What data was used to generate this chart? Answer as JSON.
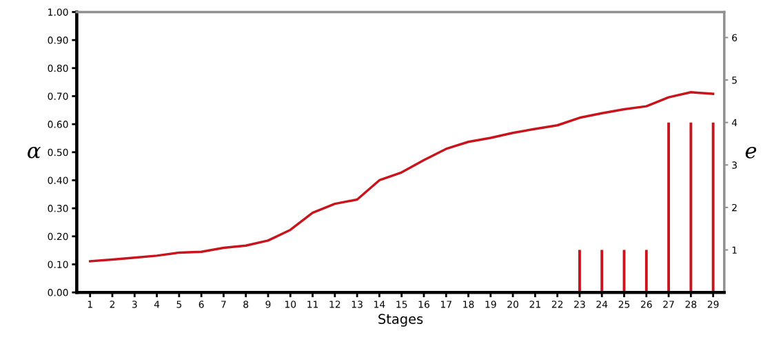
{
  "chart_data": {
    "type": "line",
    "xlabel": "Stages",
    "ylabel": "α",
    "y2label": "e",
    "categories": [
      "1",
      "2",
      "3",
      "4",
      "5",
      "6",
      "7",
      "8",
      "9",
      "10",
      "11",
      "12",
      "13",
      "14",
      "15",
      "16",
      "17",
      "18",
      "19",
      "20",
      "21",
      "22",
      "23",
      "24",
      "25",
      "26",
      "27",
      "28",
      "29"
    ],
    "series": [
      {
        "color": "#c8141c",
        "values": [
          0.111,
          0.117,
          0.124,
          0.131,
          0.142,
          0.145,
          0.159,
          0.167,
          0.185,
          0.223,
          0.284,
          0.316,
          0.331,
          0.4,
          0.428,
          0.472,
          0.512,
          0.537,
          0.551,
          0.569,
          0.583,
          0.596,
          0.623,
          0.639,
          0.653,
          0.664,
          0.696,
          0.714,
          0.708
        ]
      },
      {
        "type": "bar",
        "axis": "y2",
        "color": "#c8141c",
        "values": [
          null,
          null,
          null,
          null,
          null,
          null,
          null,
          null,
          null,
          null,
          null,
          null,
          null,
          null,
          null,
          null,
          null,
          null,
          null,
          null,
          null,
          null,
          1,
          1,
          1,
          1,
          4,
          4,
          4
        ]
      }
    ],
    "ylim": [
      0,
      1.0
    ],
    "yticks": [
      {
        "value": 0,
        "label": "0.00"
      },
      {
        "value": 0.1,
        "label": "0.10"
      },
      {
        "value": 0.2,
        "label": "0.20"
      },
      {
        "value": 0.3,
        "label": "0.30"
      },
      {
        "value": 0.4,
        "label": "0.40"
      },
      {
        "value": 0.5,
        "label": "0.50"
      },
      {
        "value": 0.6,
        "label": "0.60"
      },
      {
        "value": 0.7,
        "label": "0.70"
      },
      {
        "value": 0.8,
        "label": "0.80"
      },
      {
        "value": 0.9,
        "label": "0.90"
      },
      {
        "value": 1.0,
        "label": "1.00"
      }
    ],
    "y2lim": [
      0,
      6.6
    ],
    "y2ticks": [
      1,
      2,
      3,
      4,
      5,
      6
    ],
    "grid": false,
    "line_style": "solid",
    "marker": "none"
  }
}
